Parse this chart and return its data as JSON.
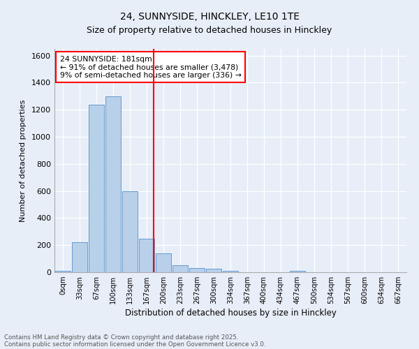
{
  "title1": "24, SUNNYSIDE, HINCKLEY, LE10 1TE",
  "title2": "Size of property relative to detached houses in Hinckley",
  "xlabel": "Distribution of detached houses by size in Hinckley",
  "ylabel": "Number of detached properties",
  "bar_labels": [
    "0sqm",
    "33sqm",
    "67sqm",
    "100sqm",
    "133sqm",
    "167sqm",
    "200sqm",
    "233sqm",
    "267sqm",
    "300sqm",
    "334sqm",
    "367sqm",
    "400sqm",
    "434sqm",
    "467sqm",
    "500sqm",
    "534sqm",
    "567sqm",
    "600sqm",
    "634sqm",
    "667sqm"
  ],
  "bar_values": [
    10,
    220,
    1240,
    1300,
    600,
    245,
    140,
    50,
    30,
    28,
    10,
    0,
    0,
    0,
    8,
    0,
    0,
    0,
    0,
    0,
    0
  ],
  "bar_color": "#b8d0ea",
  "bar_edge_color": "#6699cc",
  "background_color": "#e8eef8",
  "grid_color": "#ffffff",
  "vline_color": "red",
  "annotation_text": "24 SUNNYSIDE: 181sqm\n← 91% of detached houses are smaller (3,478)\n9% of semi-detached houses are larger (336) →",
  "annotation_box_color": "white",
  "annotation_box_edge": "red",
  "ylim": [
    0,
    1650
  ],
  "yticks": [
    0,
    200,
    400,
    600,
    800,
    1000,
    1200,
    1400,
    1600
  ],
  "footer1": "Contains HM Land Registry data © Crown copyright and database right 2025.",
  "footer2": "Contains public sector information licensed under the Open Government Licence v3.0."
}
